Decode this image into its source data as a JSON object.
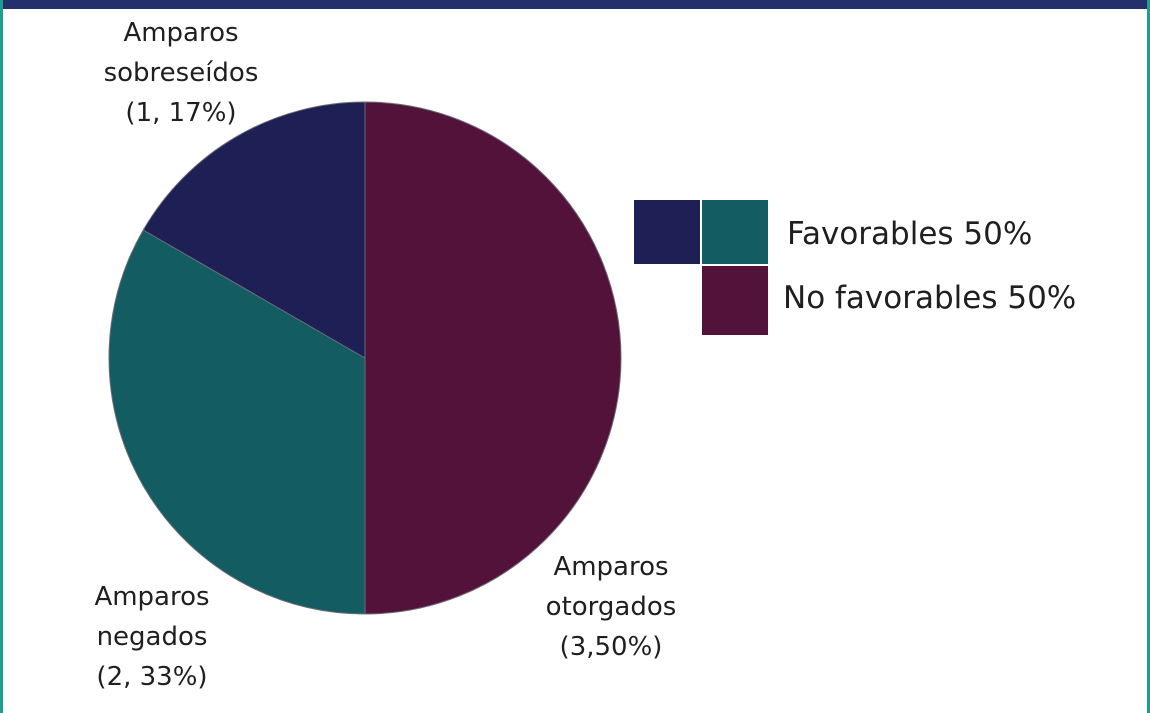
{
  "colors": {
    "frame_top": "#23306b",
    "frame_side": "#1aa08c",
    "otorgados": "#52123a",
    "negados": "#135c62",
    "sobreseidos": "#1d1f55",
    "slice_edge": "#6b6b78",
    "legend_edge": "#ffffff"
  },
  "chart_data": {
    "type": "pie",
    "slices": [
      {
        "key": "otorgados",
        "count": 3,
        "percent": 50,
        "label_lines": [
          "Amparos",
          "otorgados",
          "(3,50%)"
        ]
      },
      {
        "key": "negados",
        "count": 2,
        "percent": 33,
        "label_lines": [
          "Amparos",
          "negados",
          "(2, 33%)"
        ]
      },
      {
        "key": "sobreseidos",
        "count": 1,
        "percent": 17,
        "label_lines": [
          "Amparos",
          "sobreseídos",
          "(1, 17%)"
        ]
      }
    ],
    "legend": {
      "placement": "right",
      "entries": [
        {
          "label": "Favorables 50%",
          "swatch_keys": [
            "sobreseidos",
            "negados"
          ]
        },
        {
          "label": "No favorables 50%",
          "swatch_keys": [
            "otorgados"
          ]
        }
      ]
    }
  }
}
